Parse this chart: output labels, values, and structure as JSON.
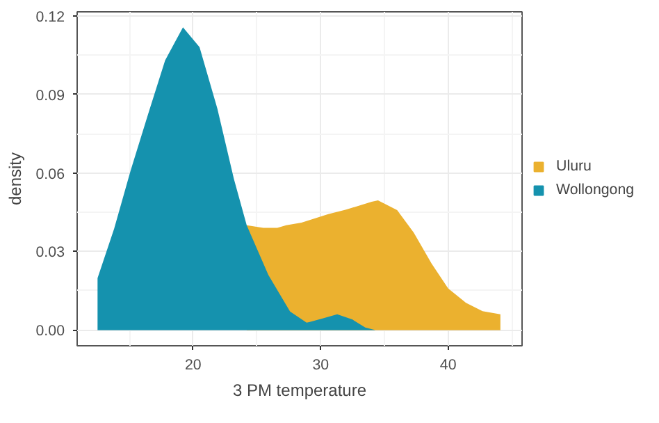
{
  "chart_data": {
    "type": "area",
    "xlabel": "3 PM temperature",
    "ylabel": "density",
    "xlim": [
      10.9,
      45.8
    ],
    "ylim": [
      -0.006,
      0.1215
    ],
    "xticks": [
      20,
      30,
      40
    ],
    "yticks": [
      {
        "value": 0,
        "label": "0.00"
      },
      {
        "value": 0.03,
        "label": "0.03"
      },
      {
        "value": 0.06,
        "label": "0.06"
      },
      {
        "value": 0.09,
        "label": "0.09"
      },
      {
        "value": 0.12,
        "label": "0.12"
      }
    ],
    "grid": true,
    "legend": "right",
    "series": [
      {
        "name": "Uluru",
        "color": "#ebb12f",
        "x": [
          24.2,
          25.5,
          26.6,
          27.3,
          28.5,
          30.6,
          32.0,
          34.0,
          34.5,
          36.0,
          37.3,
          38.7,
          40.0,
          41.4,
          42.7,
          44.1
        ],
        "values": [
          0.04,
          0.039,
          0.039,
          0.04,
          0.041,
          0.0443,
          0.046,
          0.049,
          0.0495,
          0.0458,
          0.0372,
          0.0254,
          0.0159,
          0.0104,
          0.0072,
          0.006
        ]
      },
      {
        "name": "Wollongong",
        "color": "#1592ae",
        "x": [
          12.5,
          13.8,
          15.1,
          16.5,
          17.8,
          19.2,
          20.5,
          21.9,
          23.2,
          24.2,
          25.9,
          27.6,
          28.9,
          29.1,
          30.2,
          31.3,
          32.5,
          33.5,
          34.3
        ],
        "values": [
          0.0198,
          0.0387,
          0.061,
          0.083,
          0.103,
          0.1156,
          0.108,
          0.0845,
          0.0576,
          0.04,
          0.021,
          0.0071,
          0.0028,
          0.003,
          0.0045,
          0.006,
          0.004,
          0.001,
          0.0
        ]
      }
    ]
  }
}
